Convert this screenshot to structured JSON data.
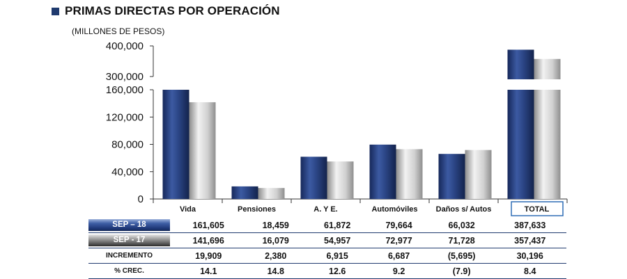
{
  "title": "PRIMAS DIRECTAS POR OPERACIÓN",
  "subtitle": "(MILLONES DE PESOS)",
  "colors": {
    "series_sep18": "#2b4585",
    "series_sep17": "#c4c4c4",
    "bullet": "#1f3a6e",
    "total_box": "#2f6db5"
  },
  "chart_data": {
    "type": "bar",
    "categories": [
      "Vida",
      "Pensiones",
      "A. Y E.",
      "Automóviles",
      "Daños s/ Autos",
      "TOTAL"
    ],
    "series": [
      {
        "name": "SEP – 18",
        "values": [
          161605,
          18459,
          61872,
          79664,
          66032,
          387633
        ]
      },
      {
        "name": "SEP - 17",
        "values": [
          141696,
          16079,
          54957,
          72977,
          71728,
          357437
        ]
      }
    ],
    "yticks_lower": [
      "0",
      "40,000",
      "80,000",
      "120,000",
      "160,000"
    ],
    "yticks_upper": [
      "300,000",
      "400,000"
    ],
    "ylim_lower": [
      0,
      160000
    ],
    "ylim_upper": [
      300000,
      400000
    ],
    "axis_break": true,
    "grid": false
  },
  "table": {
    "rows": [
      {
        "label": "SEP – 18",
        "style": "blue",
        "values": [
          "161,605",
          "18,459",
          "61,872",
          "79,664",
          "66,032",
          "387,633"
        ]
      },
      {
        "label": "SEP - 17",
        "style": "gray",
        "values": [
          "141,696",
          "16,079",
          "54,957",
          "72,977",
          "71,728",
          "357,437"
        ]
      },
      {
        "label": "INCREMENTO",
        "style": "plain",
        "values": [
          "19,909",
          "2,380",
          "6,915",
          "6,687",
          "(5,695)",
          "30,196"
        ]
      },
      {
        "label": "% CREC.",
        "style": "plain",
        "values": [
          "14.1",
          "14.8",
          "12.6",
          "9.2",
          "(7.9)",
          "8.4"
        ]
      }
    ]
  }
}
